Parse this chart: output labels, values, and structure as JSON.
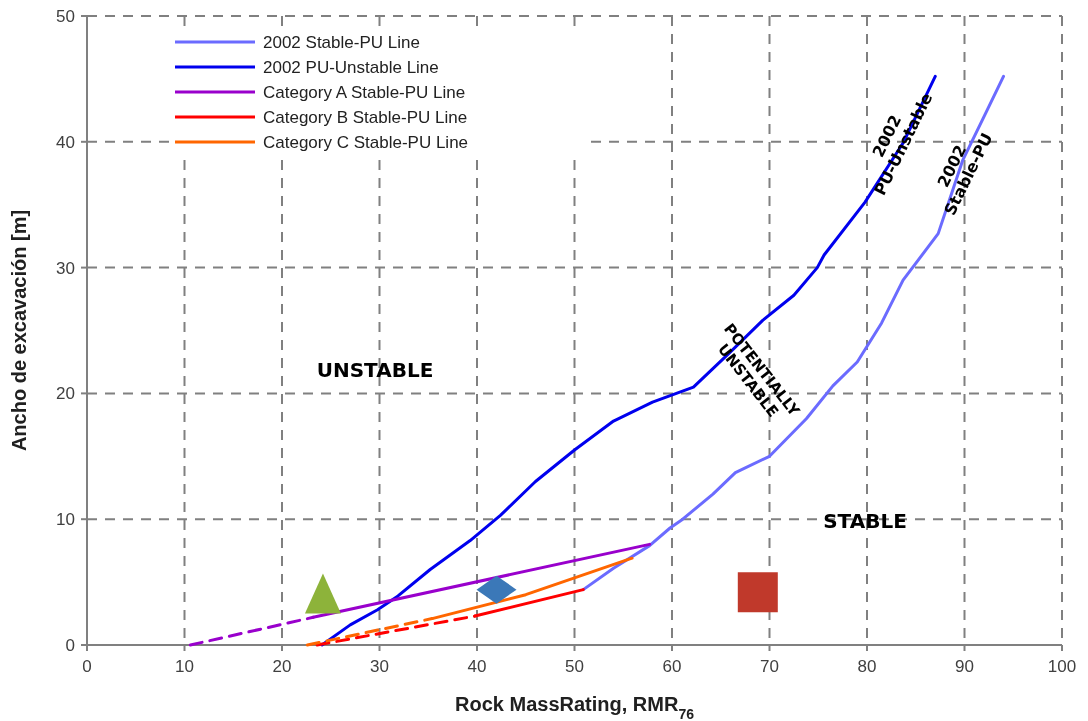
{
  "chart_data": {
    "type": "line",
    "xlabel": "Rock MassRating,  RMR$_{76}$",
    "ylabel": "Ancho de excavación [m]",
    "xlim": [
      0,
      100
    ],
    "xticks": [
      0,
      10,
      20,
      30,
      40,
      50,
      60,
      70,
      80,
      90,
      100
    ],
    "ylim": [
      0,
      50
    ],
    "yticks": [
      0,
      10,
      20,
      30,
      40,
      50
    ],
    "grid": true,
    "legend": "top left",
    "marker": "none",
    "series": [
      {
        "name": "2002 Stable-PU Line",
        "color": "#6b6bff",
        "x": [
          50.9,
          54,
          57.7,
          59.8,
          61.1,
          64.2,
          66.5,
          70,
          73.8,
          76.5,
          79,
          81.5,
          83.7,
          87.3,
          89.8,
          92,
          94
        ],
        "values": [
          4.4,
          6.1,
          7.9,
          9.3,
          10,
          12,
          13.7,
          15,
          18,
          20.6,
          22.5,
          25.6,
          29,
          32.7,
          38.5,
          42,
          45.2
        ]
      },
      {
        "name": "2002 PU-Unstable Line",
        "color": "#0000ee",
        "x": [
          24.1,
          27,
          29.8,
          31.9,
          35.2,
          39.3,
          42.4,
          46,
          50,
          54,
          58,
          62.2,
          66,
          69.3,
          72.5,
          74.9,
          75.6,
          79.8,
          83.7,
          87
        ],
        "values": [
          0,
          1.6,
          2.8,
          3.9,
          6,
          8.3,
          10.3,
          13,
          15.5,
          17.8,
          19.3,
          20.5,
          23.3,
          25.8,
          27.8,
          30,
          31,
          35.2,
          39.9,
          45.2
        ]
      },
      {
        "name": "Category A Stable-PU Line",
        "color": "#9900cc",
        "x": [
          23.2,
          57.7
        ],
        "values": [
          2.2,
          8
        ]
      },
      {
        "color": "#9900cc",
        "line_style": "dashed",
        "x": [
          10.6,
          23.2
        ],
        "values": [
          0,
          2.2
        ]
      },
      {
        "name": "Category B Stable-PU Line",
        "color": "#ff0000",
        "x": [
          39.8,
          50.9
        ],
        "values": [
          2.3,
          4.4
        ]
      },
      {
        "color": "#ff0000",
        "line_style": "dashed",
        "x": [
          23.6,
          39.8
        ],
        "values": [
          0,
          2.3
        ]
      },
      {
        "name": "Category C Stable-PU Line",
        "color": "#ff6600",
        "x": [
          35.4,
          45,
          55.9
        ],
        "values": [
          2.1,
          4,
          6.9
        ]
      },
      {
        "color": "#ff6600",
        "line_style": "dashed",
        "x": [
          22.6,
          35.4
        ],
        "values": [
          0,
          2.1
        ]
      },
      {
        "type": "scatter",
        "marker": "triangle",
        "color": "#8db33a",
        "x": [
          24.2
        ],
        "values": [
          4.1
        ]
      },
      {
        "type": "scatter",
        "marker": "diamond",
        "color": "#3b78b8",
        "x": [
          42
        ],
        "values": [
          4.4
        ]
      },
      {
        "type": "scatter",
        "marker": "square",
        "color": "#c0392b",
        "x": [
          68.8
        ],
        "values": [
          4.2
        ]
      }
    ],
    "annotations": [
      "UNSTABLE",
      "POTENTIALLY\nUNSTABLE",
      "STABLE",
      "2002\nPU-Unstable",
      "2002\nStable-PU"
    ]
  }
}
